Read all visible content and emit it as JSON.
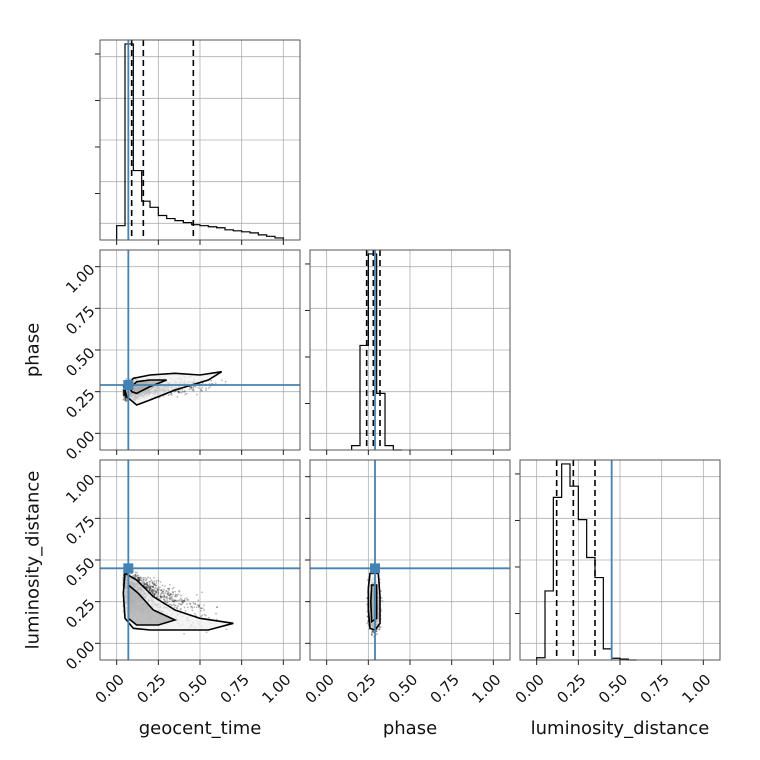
{
  "chart_data": {
    "type": "corner",
    "parameters": [
      "geocent_time",
      "phase",
      "luminosity_distance"
    ],
    "range": [
      -0.1,
      1.1
    ],
    "tick_labels": [
      "0.00",
      "0.25",
      "0.50",
      "0.75",
      "1.00"
    ],
    "grid": true,
    "truth": {
      "geocent_time": 0.07,
      "phase": 0.29,
      "luminosity_distance": 0.45
    },
    "truth_color": "#4682b4",
    "quantiles": {
      "geocent_time": [
        0.09,
        0.16,
        0.46
      ],
      "phase": [
        0.24,
        0.28,
        0.32
      ],
      "luminosity_distance": [
        0.12,
        0.22,
        0.35
      ]
    },
    "histograms": {
      "geocent_time": {
        "edges": [
          0.0,
          0.05,
          0.1,
          0.15,
          0.2,
          0.25,
          0.3,
          0.35,
          0.4,
          0.45,
          0.5,
          0.55,
          0.6,
          0.65,
          0.7,
          0.75,
          0.8,
          0.85,
          0.9,
          0.95,
          1.0
        ],
        "counts": [
          0.07,
          0.96,
          0.34,
          0.19,
          0.16,
          0.12,
          0.105,
          0.095,
          0.085,
          0.075,
          0.07,
          0.065,
          0.06,
          0.05,
          0.045,
          0.04,
          0.035,
          0.025,
          0.018,
          0.01
        ]
      },
      "phase": {
        "edges": [
          0.15,
          0.2,
          0.25,
          0.3,
          0.35,
          0.4,
          0.45
        ],
        "counts": [
          0.02,
          0.48,
          0.9,
          0.26,
          0.02,
          0.0
        ]
      },
      "luminosity_distance": {
        "edges": [
          0.0,
          0.05,
          0.1,
          0.15,
          0.2,
          0.25,
          0.3,
          0.35,
          0.4,
          0.45,
          0.5,
          0.55,
          0.6
        ],
        "counts": [
          0.01,
          0.31,
          0.73,
          0.88,
          0.78,
          0.63,
          0.46,
          0.37,
          0.05,
          0.008,
          0.004,
          0.0
        ]
      }
    },
    "pairs": [
      {
        "x": "geocent_time",
        "y": "phase",
        "contours": [
          [
            [
              0.05,
              0.26
            ],
            [
              0.1,
              0.33
            ],
            [
              0.2,
              0.35
            ],
            [
              0.35,
              0.36
            ],
            [
              0.5,
              0.35
            ],
            [
              0.63,
              0.37
            ],
            [
              0.55,
              0.32
            ],
            [
              0.35,
              0.26
            ],
            [
              0.2,
              0.2
            ],
            [
              0.12,
              0.17
            ],
            [
              0.06,
              0.22
            ]
          ],
          [
            [
              0.08,
              0.27
            ],
            [
              0.12,
              0.31
            ],
            [
              0.2,
              0.32
            ],
            [
              0.3,
              0.32
            ],
            [
              0.2,
              0.28
            ],
            [
              0.12,
              0.24
            ],
            [
              0.09,
              0.25
            ]
          ]
        ]
      },
      {
        "x": "geocent_time",
        "y": "luminosity_distance",
        "contours": [
          [
            [
              0.05,
              0.42
            ],
            [
              0.12,
              0.38
            ],
            [
              0.22,
              0.28
            ],
            [
              0.35,
              0.2
            ],
            [
              0.5,
              0.15
            ],
            [
              0.7,
              0.12
            ],
            [
              0.55,
              0.08
            ],
            [
              0.35,
              0.08
            ],
            [
              0.2,
              0.08
            ],
            [
              0.1,
              0.09
            ],
            [
              0.05,
              0.15
            ],
            [
              0.04,
              0.3
            ]
          ],
          [
            [
              0.07,
              0.35
            ],
            [
              0.13,
              0.3
            ],
            [
              0.22,
              0.2
            ],
            [
              0.35,
              0.14
            ],
            [
              0.25,
              0.11
            ],
            [
              0.12,
              0.11
            ],
            [
              0.07,
              0.15
            ]
          ]
        ]
      },
      {
        "x": "phase",
        "y": "luminosity_distance",
        "contours": [
          [
            [
              0.26,
              0.42
            ],
            [
              0.31,
              0.42
            ],
            [
              0.32,
              0.28
            ],
            [
              0.32,
              0.12
            ],
            [
              0.29,
              0.08
            ],
            [
              0.26,
              0.09
            ],
            [
              0.25,
              0.2
            ],
            [
              0.25,
              0.33
            ]
          ],
          [
            [
              0.27,
              0.35
            ],
            [
              0.3,
              0.35
            ],
            [
              0.3,
              0.15
            ],
            [
              0.27,
              0.13
            ],
            [
              0.265,
              0.25
            ]
          ]
        ]
      }
    ]
  }
}
